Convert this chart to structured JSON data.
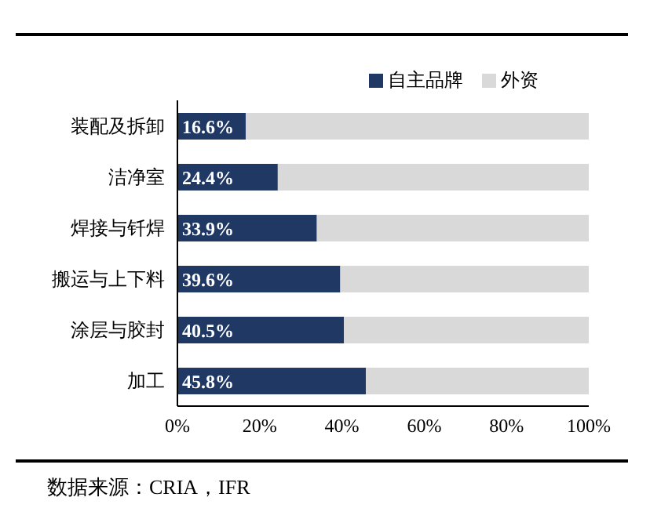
{
  "chart_data": {
    "type": "bar",
    "orientation": "horizontal",
    "stacked": true,
    "categories": [
      "装配及拆卸",
      "洁净室",
      "焊接与钎焊",
      "搬运与上下料",
      "涂层与胶封",
      "加工"
    ],
    "series": [
      {
        "name": "自主品牌",
        "color": "#1f3864",
        "values": [
          16.6,
          24.4,
          33.9,
          39.6,
          40.5,
          45.8
        ],
        "value_labels": [
          "16.6%",
          "24.4%",
          "33.9%",
          "39.6%",
          "40.5%",
          "45.8%"
        ]
      },
      {
        "name": "外资",
        "color": "#d9d9d9",
        "values": [
          83.4,
          75.6,
          66.1,
          60.4,
          59.5,
          54.2
        ]
      }
    ],
    "xlim": [
      0,
      100
    ],
    "xticks": [
      {
        "value": 0,
        "label": "0%"
      },
      {
        "value": 20,
        "label": "20%"
      },
      {
        "value": 40,
        "label": "40%"
      },
      {
        "value": 60,
        "label": "60%"
      },
      {
        "value": 80,
        "label": "80%"
      },
      {
        "value": 100,
        "label": "100%"
      }
    ],
    "legend": "top",
    "annotations": [
      "数据来源：CRIA，IFR"
    ]
  }
}
